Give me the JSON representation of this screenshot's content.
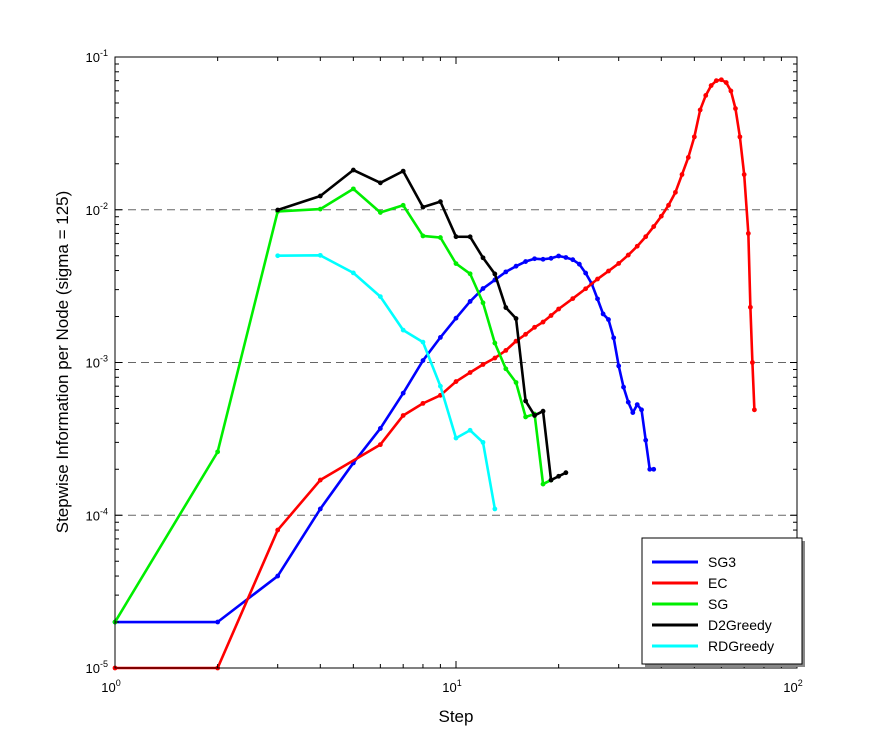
{
  "chart_data": {
    "type": "line",
    "xlabel": "Step",
    "ylabel": "Stepwise Information per Node (sigma = 125)",
    "xscale": "log",
    "yscale": "log",
    "xlim": [
      1,
      100
    ],
    "ylim": [
      1e-05,
      0.1
    ],
    "x_ticks": [
      {
        "base": "10",
        "exp": "0"
      },
      {
        "base": "10",
        "exp": "1"
      },
      {
        "base": "10",
        "exp": "2"
      }
    ],
    "y_ticks": [
      {
        "base": "10",
        "exp": "-5"
      },
      {
        "base": "10",
        "exp": "-4"
      },
      {
        "base": "10",
        "exp": "-3"
      },
      {
        "base": "10",
        "exp": "-2"
      },
      {
        "base": "10",
        "exp": "-1"
      }
    ],
    "grid": "dashed horizontal lines at 10^-4, 10^-3, 10^-2",
    "legend_position": "bottom-right",
    "series": [
      {
        "name": "SG3",
        "color": "#0000ff",
        "points": [
          [
            1,
            2e-05
          ],
          [
            2,
            2e-05
          ],
          [
            3,
            4e-05
          ],
          [
            4,
            0.00011
          ],
          [
            5,
            0.00022
          ],
          [
            6,
            0.00037
          ],
          [
            7,
            0.00063
          ],
          [
            8,
            0.00103
          ],
          [
            9,
            0.00146
          ],
          [
            10,
            0.00195
          ],
          [
            11,
            0.00251
          ],
          [
            12,
            0.00305
          ],
          [
            13,
            0.00347
          ],
          [
            14,
            0.00392
          ],
          [
            15,
            0.00427
          ],
          [
            16,
            0.00458
          ],
          [
            17,
            0.00478
          ],
          [
            18,
            0.00474
          ],
          [
            19,
            0.00481
          ],
          [
            20,
            0.00498
          ],
          [
            21,
            0.00487
          ],
          [
            22,
            0.00471
          ],
          [
            23,
            0.0044
          ],
          [
            24,
            0.00385
          ],
          [
            25,
            0.00328
          ],
          [
            26,
            0.00261
          ],
          [
            27,
            0.00208
          ],
          [
            28,
            0.00191
          ],
          [
            29,
            0.00145
          ],
          [
            30,
            0.00095
          ],
          [
            31,
            0.00069
          ],
          [
            32,
            0.00055
          ],
          [
            33,
            0.00047
          ],
          [
            34,
            0.00053
          ],
          [
            35,
            0.00049
          ],
          [
            36,
            0.00031
          ],
          [
            37,
            0.0002
          ],
          [
            38,
            0.0002
          ]
        ]
      },
      {
        "name": "EC",
        "color": "#ff0000",
        "points": [
          [
            1,
            1e-05
          ],
          [
            2,
            1e-05
          ],
          [
            3,
            8e-05
          ],
          [
            4,
            0.00017
          ],
          [
            6,
            0.00029
          ],
          [
            7,
            0.00045
          ],
          [
            8,
            0.00054
          ],
          [
            9,
            0.00061
          ],
          [
            10,
            0.00075
          ],
          [
            11,
            0.00086
          ],
          [
            12,
            0.00097
          ],
          [
            13,
            0.00107
          ],
          [
            14,
            0.0012
          ],
          [
            15,
            0.00138
          ],
          [
            16,
            0.00153
          ],
          [
            17,
            0.0017
          ],
          [
            18,
            0.00184
          ],
          [
            19,
            0.00203
          ],
          [
            20,
            0.00224
          ],
          [
            22,
            0.00262
          ],
          [
            24,
            0.00304
          ],
          [
            26,
            0.00352
          ],
          [
            28,
            0.00397
          ],
          [
            30,
            0.00445
          ],
          [
            32,
            0.00505
          ],
          [
            34,
            0.00577
          ],
          [
            36,
            0.00666
          ],
          [
            38,
            0.00776
          ],
          [
            40,
            0.00907
          ],
          [
            42,
            0.0107
          ],
          [
            44,
            0.013
          ],
          [
            46,
            0.017
          ],
          [
            48,
            0.022
          ],
          [
            50,
            0.03
          ],
          [
            52,
            0.045
          ],
          [
            54,
            0.056
          ],
          [
            56,
            0.065
          ],
          [
            58,
            0.07
          ],
          [
            60,
            0.071
          ],
          [
            62,
            0.068
          ],
          [
            64,
            0.06
          ],
          [
            66,
            0.046
          ],
          [
            68,
            0.03
          ],
          [
            70,
            0.017
          ],
          [
            72,
            0.007
          ],
          [
            73,
            0.0023
          ],
          [
            74,
            0.001
          ],
          [
            75,
            0.00049
          ]
        ]
      },
      {
        "name": "SG",
        "color": "#00ee00",
        "points": [
          [
            1,
            2e-05
          ],
          [
            2,
            0.00026
          ],
          [
            3,
            0.00975
          ],
          [
            4,
            0.0101
          ],
          [
            5,
            0.0137
          ],
          [
            6,
            0.0096
          ],
          [
            7,
            0.0107
          ],
          [
            8,
            0.00674
          ],
          [
            9,
            0.00658
          ],
          [
            10,
            0.00444
          ],
          [
            11,
            0.00381
          ],
          [
            12,
            0.00246
          ],
          [
            13,
            0.00134
          ],
          [
            14,
            0.00091
          ],
          [
            15,
            0.00074
          ],
          [
            16,
            0.00044
          ],
          [
            17,
            0.00046
          ],
          [
            18,
            0.00016
          ],
          [
            19,
            0.00017
          ]
        ]
      },
      {
        "name": "D2Greedy",
        "color": "#000000",
        "points": [
          [
            3,
            0.00996
          ],
          [
            4,
            0.0123
          ],
          [
            5,
            0.0182
          ],
          [
            6,
            0.015
          ],
          [
            7,
            0.0179
          ],
          [
            8,
            0.0104
          ],
          [
            9,
            0.0113
          ],
          [
            10,
            0.00666
          ],
          [
            11,
            0.00665
          ],
          [
            12,
            0.00485
          ],
          [
            13,
            0.0038
          ],
          [
            14,
            0.00229
          ],
          [
            15,
            0.00194
          ],
          [
            16,
            0.00056
          ],
          [
            17,
            0.00045
          ],
          [
            18,
            0.00048
          ],
          [
            19,
            0.00017
          ],
          [
            20,
            0.00018
          ],
          [
            21,
            0.00019
          ]
        ]
      },
      {
        "name": "RDGreedy",
        "color": "#00ffff",
        "points": [
          [
            3,
            0.005
          ],
          [
            4,
            0.00503
          ],
          [
            5,
            0.00386
          ],
          [
            6,
            0.0027
          ],
          [
            7,
            0.00163
          ],
          [
            8,
            0.00136
          ],
          [
            9,
            0.0007
          ],
          [
            10,
            0.00032
          ],
          [
            11,
            0.00036
          ],
          [
            12,
            0.0003
          ],
          [
            13,
            0.00011
          ]
        ]
      }
    ]
  }
}
